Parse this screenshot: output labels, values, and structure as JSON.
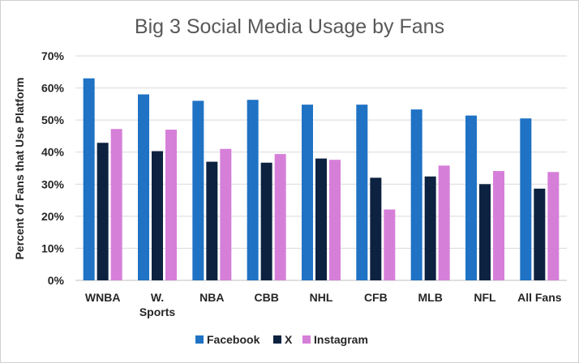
{
  "chart_data": {
    "type": "bar",
    "title": "Big 3 Social Media Usage by Fans",
    "ylabel": "Percent of Fans that Use Platform",
    "xlabel": "",
    "categories": [
      [
        "WNBA"
      ],
      [
        "W.",
        "Sports"
      ],
      [
        "NBA"
      ],
      [
        "CBB"
      ],
      [
        "NHL"
      ],
      [
        "CFB"
      ],
      [
        "MLB"
      ],
      [
        "NFL"
      ],
      [
        "All Fans"
      ]
    ],
    "series": [
      {
        "name": "Facebook",
        "color": "#1f72c4",
        "values": [
          63,
          58,
          56,
          56.3,
          54.8,
          54.8,
          53.3,
          51.4,
          50.5
        ]
      },
      {
        "name": "X",
        "color": "#0d2240",
        "values": [
          42.9,
          40.3,
          37,
          36.7,
          38,
          32,
          32.4,
          30,
          28.6
        ]
      },
      {
        "name": "Instagram",
        "color": "#d67fd9",
        "values": [
          47.2,
          47,
          41,
          39.4,
          37.6,
          22.1,
          35.8,
          34.1,
          33.8
        ]
      }
    ],
    "ylim": [
      0,
      70
    ],
    "yticks": [
      0,
      10,
      20,
      30,
      40,
      50,
      60,
      70
    ],
    "ytick_labels": [
      "0%",
      "10%",
      "20%",
      "30%",
      "40%",
      "50%",
      "60%",
      "70%"
    ],
    "grid": true,
    "legend": "bottom-center"
  }
}
